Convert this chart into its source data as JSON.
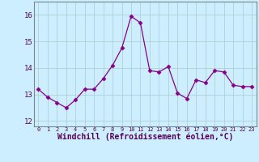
{
  "x": [
    0,
    1,
    2,
    3,
    4,
    5,
    6,
    7,
    8,
    9,
    10,
    11,
    12,
    13,
    14,
    15,
    16,
    17,
    18,
    19,
    20,
    21,
    22,
    23
  ],
  "y": [
    13.2,
    12.9,
    12.7,
    12.5,
    12.8,
    13.2,
    13.2,
    13.6,
    14.1,
    14.75,
    15.95,
    15.7,
    13.9,
    13.85,
    14.05,
    13.05,
    12.85,
    13.55,
    13.45,
    13.9,
    13.85,
    13.35,
    13.3,
    13.3
  ],
  "line_color": "#880088",
  "marker": "D",
  "marker_size": 2.5,
  "bg_color": "#cceeff",
  "grid_color": "#aacccc",
  "xlabel": "Windchill (Refroidissement éolien,°C)",
  "xlabel_fontsize": 7,
  "xtick_labels": [
    "0",
    "1",
    "2",
    "3",
    "4",
    "5",
    "6",
    "7",
    "8",
    "9",
    "10",
    "11",
    "12",
    "13",
    "14",
    "15",
    "16",
    "17",
    "18",
    "19",
    "20",
    "21",
    "22",
    "23"
  ],
  "ytick_values": [
    12,
    13,
    14,
    15,
    16
  ],
  "ylim": [
    11.8,
    16.5
  ],
  "xlim": [
    -0.5,
    23.5
  ]
}
